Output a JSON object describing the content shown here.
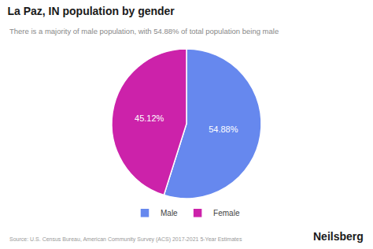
{
  "chart_data": {
    "type": "pie",
    "title": "La Paz, IN population by gender",
    "subtitle": "There is a majority of male population, with 54.88% of total population being male",
    "categories": [
      "Male",
      "Female"
    ],
    "values": [
      54.88,
      45.12
    ],
    "value_labels": [
      "54.88%",
      "45.12%"
    ],
    "colors": [
      "#6688ee",
      "#cc22aa"
    ],
    "data_labels": true,
    "legend": "bottom",
    "annotations": [
      "Source: U.S. Census Bureau, American Community Survey (ACS) 2017-2021 5-Year Estimates",
      "Neilsberg"
    ]
  }
}
